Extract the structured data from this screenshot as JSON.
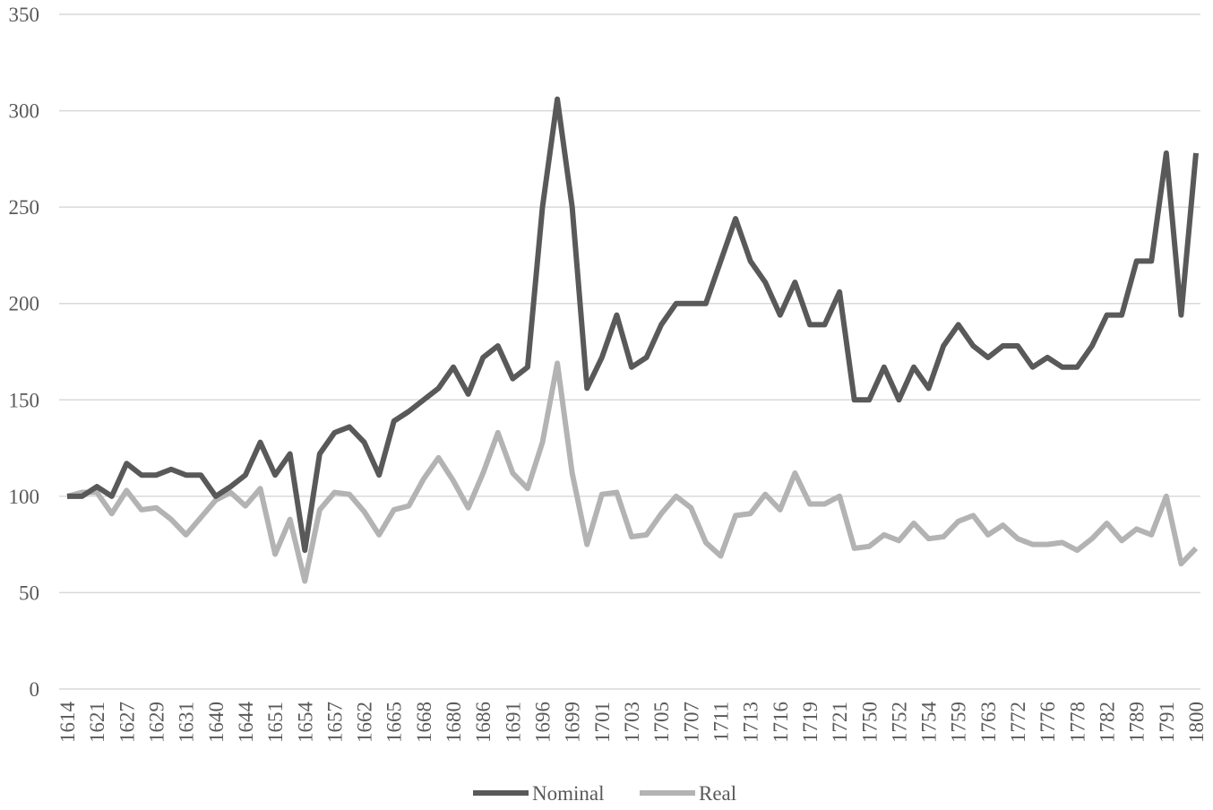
{
  "chart_data": {
    "type": "line",
    "categories": [
      "1614",
      null,
      "1621",
      null,
      "1627",
      null,
      "1629",
      null,
      "1631",
      null,
      "1640",
      null,
      "1644",
      null,
      "1651",
      null,
      "1654",
      null,
      "1657",
      null,
      "1662",
      null,
      "1665",
      null,
      "1668",
      null,
      "1680",
      null,
      "1686",
      null,
      "1691",
      null,
      "1696",
      null,
      "1699",
      null,
      "1701",
      null,
      "1703",
      null,
      "1705",
      null,
      "1707",
      null,
      "1711",
      null,
      "1713",
      null,
      "1716",
      null,
      "1719",
      null,
      "1721",
      null,
      "1750",
      null,
      "1752",
      null,
      "1754",
      null,
      "1759",
      null,
      "1763",
      null,
      "1772",
      null,
      "1776",
      null,
      "1778",
      null,
      "1782",
      null,
      "1789",
      null,
      "1791",
      null,
      "1800"
    ],
    "series": [
      {
        "name": "Nominal",
        "color": "#595959",
        "values": [
          100,
          100,
          105,
          100,
          117,
          111,
          111,
          114,
          111,
          111,
          100,
          105,
          111,
          128,
          111,
          122,
          72,
          122,
          133,
          136,
          128,
          111,
          139,
          144,
          150,
          156,
          167,
          153,
          172,
          178,
          161,
          167,
          250,
          306,
          250,
          156,
          172,
          194,
          167,
          172,
          189,
          200,
          200,
          200,
          222,
          244,
          222,
          211,
          194,
          211,
          189,
          189,
          206,
          150,
          150,
          167,
          150,
          167,
          156,
          178,
          189,
          178,
          172,
          178,
          178,
          167,
          172,
          167,
          167,
          178,
          194,
          194,
          222,
          222,
          278,
          194,
          278
        ]
      },
      {
        "name": "Real",
        "color": "#b3b3b3",
        "values": [
          100,
          102,
          102,
          91,
          103,
          93,
          94,
          88,
          80,
          89,
          98,
          102,
          95,
          104,
          70,
          88,
          56,
          93,
          102,
          101,
          92,
          80,
          93,
          95,
          109,
          120,
          108,
          94,
          112,
          133,
          112,
          104,
          128,
          169,
          112,
          75,
          101,
          102,
          79,
          80,
          91,
          100,
          94,
          76,
          69,
          90,
          91,
          101,
          93,
          112,
          96,
          96,
          100,
          73,
          74,
          80,
          77,
          86,
          78,
          79,
          87,
          90,
          80,
          85,
          78,
          75,
          75,
          76,
          72,
          78,
          86,
          77,
          83,
          80,
          100,
          65,
          73
        ]
      }
    ],
    "ylim": [
      0,
      350
    ],
    "yticks": [
      0,
      50,
      100,
      150,
      200,
      250,
      300,
      350
    ],
    "grid": true,
    "legend": "bottom"
  }
}
